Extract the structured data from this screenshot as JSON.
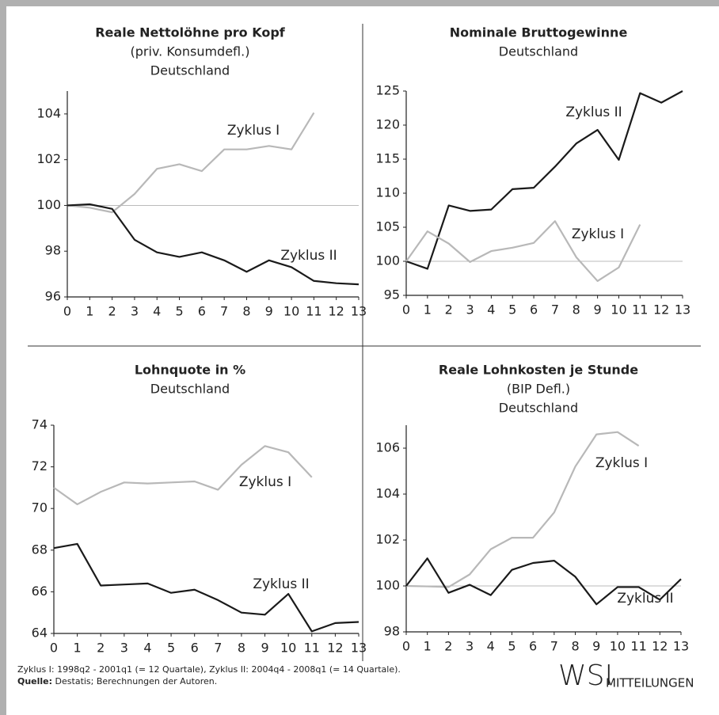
{
  "chart_data": [
    {
      "type": "line",
      "title": "Reale Nettolöhne pro Kopf",
      "subtitle": [
        "(priv. Konsumdefl.)",
        "Deutschland"
      ],
      "x": [
        0,
        1,
        2,
        3,
        4,
        5,
        6,
        7,
        8,
        9,
        10,
        11,
        12,
        13
      ],
      "xlim": [
        0,
        13
      ],
      "xticks": [
        0,
        1,
        2,
        3,
        4,
        5,
        6,
        7,
        8,
        9,
        10,
        11,
        12,
        13
      ],
      "ylim": [
        96,
        105
      ],
      "yticks": [
        96,
        98,
        100,
        102,
        104
      ],
      "hline": 100,
      "series": [
        {
          "name": "Zyklus I",
          "color": "#b8b8b8",
          "values": [
            100,
            99.9,
            99.7,
            100.5,
            101.6,
            101.8,
            101.5,
            102.45,
            102.45,
            102.6,
            102.45,
            104.05,
            null,
            null
          ]
        },
        {
          "name": "Zyklus II",
          "color": "#1a1a1a",
          "values": [
            100,
            100.05,
            99.85,
            98.5,
            97.95,
            97.75,
            97.95,
            97.6,
            97.1,
            97.6,
            97.3,
            96.7,
            96.6,
            96.55
          ]
        }
      ]
    },
    {
      "type": "line",
      "title": "Nominale Bruttogewinne",
      "subtitle": [
        "Deutschland"
      ],
      "x": [
        0,
        1,
        2,
        3,
        4,
        5,
        6,
        7,
        8,
        9,
        10,
        11,
        12,
        13
      ],
      "xlim": [
        0,
        13
      ],
      "xticks": [
        0,
        1,
        2,
        3,
        4,
        5,
        6,
        7,
        8,
        9,
        10,
        11,
        12,
        13
      ],
      "ylim": [
        95,
        125
      ],
      "yticks": [
        95,
        100,
        105,
        110,
        115,
        120,
        125
      ],
      "hline": 100,
      "series": [
        {
          "name": "Zyklus II",
          "color": "#1a1a1a",
          "values": [
            100,
            98.9,
            108.2,
            107.4,
            107.6,
            110.6,
            110.8,
            113.9,
            117.3,
            119.3,
            114.9,
            124.7,
            123.3,
            125
          ]
        },
        {
          "name": "Zyklus I",
          "color": "#b8b8b8",
          "values": [
            100,
            104.4,
            102.6,
            99.9,
            101.5,
            102,
            102.7,
            105.9,
            100.6,
            97.1,
            99.1,
            105.4,
            null,
            null
          ]
        }
      ]
    },
    {
      "type": "line",
      "title": "Lohnquote in %",
      "subtitle": [
        "Deutschland"
      ],
      "x": [
        0,
        1,
        2,
        3,
        4,
        5,
        6,
        7,
        8,
        9,
        10,
        11,
        12,
        13
      ],
      "xlim": [
        0,
        13
      ],
      "xticks": [
        0,
        1,
        2,
        3,
        4,
        5,
        6,
        7,
        8,
        9,
        10,
        11,
        12,
        13
      ],
      "ylim": [
        64,
        74
      ],
      "yticks": [
        64,
        66,
        68,
        70,
        72,
        74
      ],
      "series": [
        {
          "name": "Zyklus I",
          "color": "#b8b8b8",
          "values": [
            71,
            70.2,
            70.8,
            71.25,
            71.2,
            71.25,
            71.3,
            70.9,
            72.1,
            73,
            72.7,
            71.5,
            null,
            null
          ]
        },
        {
          "name": "Zyklus II",
          "color": "#1a1a1a",
          "values": [
            68.1,
            68.3,
            66.3,
            66.35,
            66.4,
            65.95,
            66.1,
            65.6,
            65,
            64.9,
            65.9,
            64.1,
            64.5,
            64.55
          ]
        }
      ]
    },
    {
      "type": "line",
      "title": "Reale Lohnkosten je Stunde",
      "subtitle": [
        "(BIP Defl.)",
        "Deutschland"
      ],
      "x": [
        0,
        1,
        2,
        3,
        4,
        5,
        6,
        7,
        8,
        9,
        10,
        11,
        12,
        13
      ],
      "xlim": [
        0,
        13
      ],
      "xticks": [
        0,
        1,
        2,
        3,
        4,
        5,
        6,
        7,
        8,
        9,
        10,
        11,
        12,
        13
      ],
      "ylim": [
        98,
        107
      ],
      "yticks": [
        98,
        100,
        102,
        104,
        106
      ],
      "hline": 100,
      "series": [
        {
          "name": "Zyklus I",
          "color": "#b8b8b8",
          "values": [
            100,
            99.98,
            99.95,
            100.5,
            101.6,
            102.1,
            102.1,
            103.2,
            105.2,
            106.6,
            106.7,
            106.1,
            null,
            null
          ]
        },
        {
          "name": "Zyklus II",
          "color": "#1a1a1a",
          "values": [
            100,
            101.2,
            99.7,
            100.05,
            99.6,
            100.7,
            101,
            101.1,
            100.4,
            99.2,
            99.95,
            99.95,
            99.4,
            100.3
          ]
        }
      ]
    }
  ],
  "footer": {
    "note": "Zyklus I: 1998q2 - 2001q1 (= 12 Quartale),  Zyklus II: 2004q4 - 2008q1 (= 14 Quartale).",
    "source_label": "Quelle:",
    "source": " Destatis; Berechnungen der Autoren."
  },
  "logo": {
    "main": "WSI",
    "sub": "MITTEILUNGEN"
  }
}
